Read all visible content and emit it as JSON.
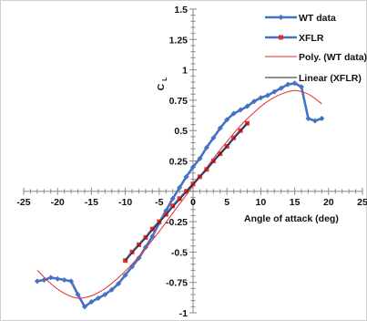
{
  "chart_data": {
    "type": "line",
    "xlabel": "Angle of attack (deg)",
    "ylabel": "C",
    "ylabel_sub": "L",
    "xlim": [
      -25,
      25
    ],
    "ylim": [
      -1,
      1.5
    ],
    "x_ticks": [
      -25,
      -20,
      -15,
      -10,
      -5,
      0,
      5,
      10,
      15,
      20,
      25
    ],
    "x_tick_labels": [
      "-25",
      "-20",
      "-15",
      "-10",
      "-5",
      "0",
      "5",
      "10",
      "15",
      "20",
      "25"
    ],
    "y_ticks": [
      -1,
      -0.75,
      -0.5,
      -0.25,
      0,
      0.25,
      0.5,
      0.75,
      1,
      1.25,
      1.5
    ],
    "y_tick_labels": [
      "-1",
      "-0.75",
      "-0.5",
      "-0.25",
      "",
      "0.25",
      "0.5",
      "0.75",
      "1",
      "1.25",
      "1.5"
    ],
    "legend_position": "top-right",
    "series": [
      {
        "name": "WT data",
        "color": "#4472c4",
        "marker": "diamond",
        "x": [
          -23,
          -22,
          -21,
          -20,
          -19,
          -18,
          -17,
          -16,
          -15,
          -14,
          -13,
          -12,
          -11,
          -10,
          -9,
          -8,
          -7,
          -6,
          -5,
          -4,
          -3,
          -2,
          -1,
          0,
          1,
          2,
          3,
          4,
          5,
          6,
          7,
          8,
          9,
          10,
          11,
          12,
          13,
          14,
          15,
          16,
          17,
          18,
          19
        ],
        "y": [
          -0.74,
          -0.73,
          -0.71,
          -0.72,
          -0.73,
          -0.74,
          -0.85,
          -0.95,
          -0.91,
          -0.88,
          -0.85,
          -0.81,
          -0.76,
          -0.69,
          -0.62,
          -0.55,
          -0.46,
          -0.37,
          -0.26,
          -0.16,
          -0.06,
          0.03,
          0.12,
          0.2,
          0.27,
          0.36,
          0.44,
          0.52,
          0.59,
          0.64,
          0.67,
          0.7,
          0.74,
          0.77,
          0.79,
          0.82,
          0.85,
          0.88,
          0.89,
          0.86,
          0.6,
          0.58,
          0.6
        ]
      },
      {
        "name": "XFLR",
        "color": "#e03030",
        "marker": "square",
        "line_color": "#4472c4",
        "x": [
          -10,
          -9,
          -8,
          -7,
          -6,
          -5,
          -4,
          -3,
          -2,
          -1,
          0,
          1,
          2,
          3,
          4,
          5,
          6,
          7,
          8
        ],
        "y": [
          -0.57,
          -0.5,
          -0.44,
          -0.38,
          -0.31,
          -0.25,
          -0.19,
          -0.12,
          -0.06,
          0,
          0.06,
          0.12,
          0.18,
          0.25,
          0.31,
          0.37,
          0.44,
          0.5,
          0.56
        ]
      },
      {
        "name": "Poly. (WT data)",
        "color": "#e03030",
        "type": "trendline-polynomial",
        "x": [
          -23,
          -21,
          -19,
          -17,
          -15,
          -13,
          -11,
          -9,
          -7,
          -5,
          -3,
          -1,
          1,
          3,
          5,
          7,
          9,
          11,
          13,
          15,
          17,
          19
        ],
        "y": [
          -0.65,
          -0.76,
          -0.84,
          -0.88,
          -0.86,
          -0.8,
          -0.71,
          -0.6,
          -0.47,
          -0.33,
          -0.18,
          -0.03,
          0.12,
          0.27,
          0.41,
          0.54,
          0.65,
          0.74,
          0.8,
          0.83,
          0.8,
          0.72
        ]
      },
      {
        "name": "Linear (XFLR)",
        "color": "#222222",
        "type": "trendline-linear",
        "x": [
          -10,
          8
        ],
        "y": [
          -0.57,
          0.56
        ]
      }
    ]
  }
}
